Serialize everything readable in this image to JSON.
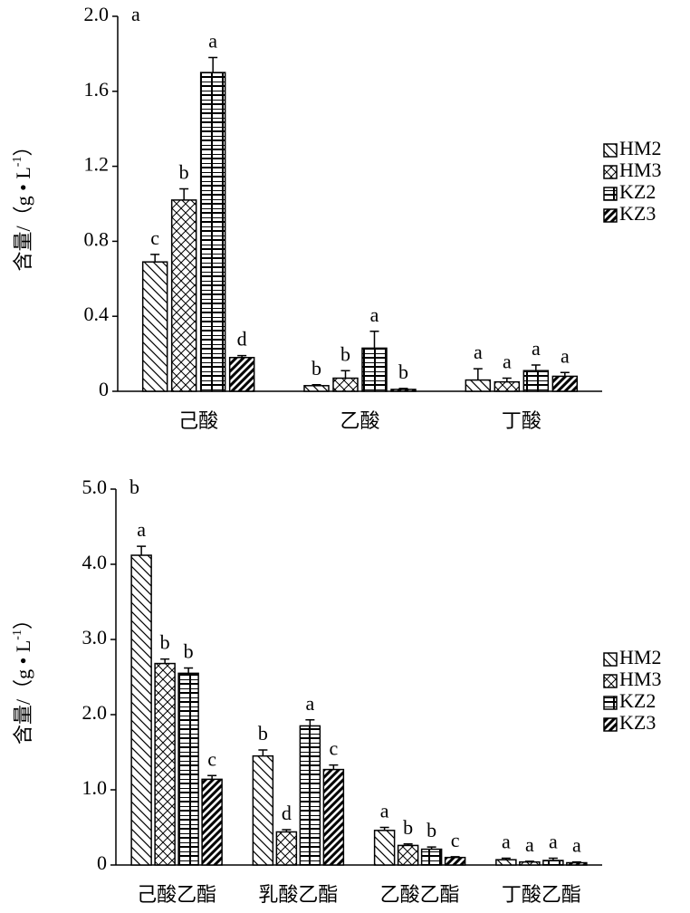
{
  "chart_data": [
    {
      "type": "bar",
      "panel": "a",
      "ylabel": "含量/（g • L",
      "ylabel_sup": "-1",
      "ylabel_end": "）",
      "categories": [
        "己酸",
        "乙酸",
        "丁酸"
      ],
      "ylim": [
        0,
        2
      ],
      "yticks": [
        0,
        0.4,
        0.8,
        1.2,
        1.6,
        {
          "value": 2,
          "label": "2.0"
        }
      ],
      "series": [
        {
          "name": "HM2",
          "color": "#000000",
          "values": [
            0.69,
            0.03,
            0.06
          ],
          "errors": [
            0.04,
            0.005,
            0.06
          ],
          "letters": [
            "c",
            "b",
            "a"
          ]
        },
        {
          "name": "HM3",
          "color": "#000000",
          "values": [
            1.02,
            0.07,
            0.05
          ],
          "errors": [
            0.06,
            0.04,
            0.02
          ],
          "letters": [
            "b",
            "b",
            "a"
          ]
        },
        {
          "name": "KZ2",
          "color": "#000000",
          "values": [
            1.7,
            0.23,
            0.11
          ],
          "errors": [
            0.08,
            0.09,
            0.03
          ],
          "letters": [
            "a",
            "a",
            "a"
          ]
        },
        {
          "name": "KZ3",
          "color": "#000000",
          "values": [
            0.18,
            0.01,
            0.08
          ],
          "errors": [
            0.01,
            0.005,
            0.02
          ],
          "letters": [
            "d",
            "b",
            "a"
          ]
        }
      ]
    },
    {
      "type": "bar",
      "panel": "b",
      "ylabel": "含量/（g • L",
      "ylabel_sup": "-1",
      "ylabel_end": "）",
      "categories": [
        "己酸乙酯",
        "乳酸乙酯",
        "乙酸乙酯",
        "丁酸乙酯"
      ],
      "ylim": [
        0,
        5
      ],
      "yticks": [
        0,
        {
          "value": 1,
          "label": "1.0"
        },
        {
          "value": 2,
          "label": "2.0"
        },
        {
          "value": 3,
          "label": "3.0"
        },
        {
          "value": 4,
          "label": "4.0"
        },
        {
          "value": 5,
          "label": "5.0"
        }
      ],
      "series": [
        {
          "name": "HM2",
          "color": "#000000",
          "values": [
            4.12,
            1.45,
            0.46,
            0.07
          ],
          "errors": [
            0.12,
            0.08,
            0.04,
            0.02
          ],
          "letters": [
            "a",
            "b",
            "a",
            "a"
          ]
        },
        {
          "name": "HM3",
          "color": "#000000",
          "values": [
            2.68,
            0.44,
            0.26,
            0.04
          ],
          "errors": [
            0.06,
            0.03,
            0.02,
            0.01
          ],
          "letters": [
            "b",
            "d",
            "b",
            "a"
          ]
        },
        {
          "name": "KZ2",
          "color": "#000000",
          "values": [
            2.55,
            1.85,
            0.21,
            0.06
          ],
          "errors": [
            0.07,
            0.08,
            0.03,
            0.03
          ],
          "letters": [
            "b",
            "a",
            "b",
            "a"
          ]
        },
        {
          "name": "KZ3",
          "color": "#000000",
          "values": [
            1.14,
            1.27,
            0.1,
            0.03
          ],
          "errors": [
            0.05,
            0.06,
            0.01,
            0.01
          ],
          "letters": [
            "c",
            "c",
            "c",
            "a"
          ]
        }
      ]
    }
  ]
}
